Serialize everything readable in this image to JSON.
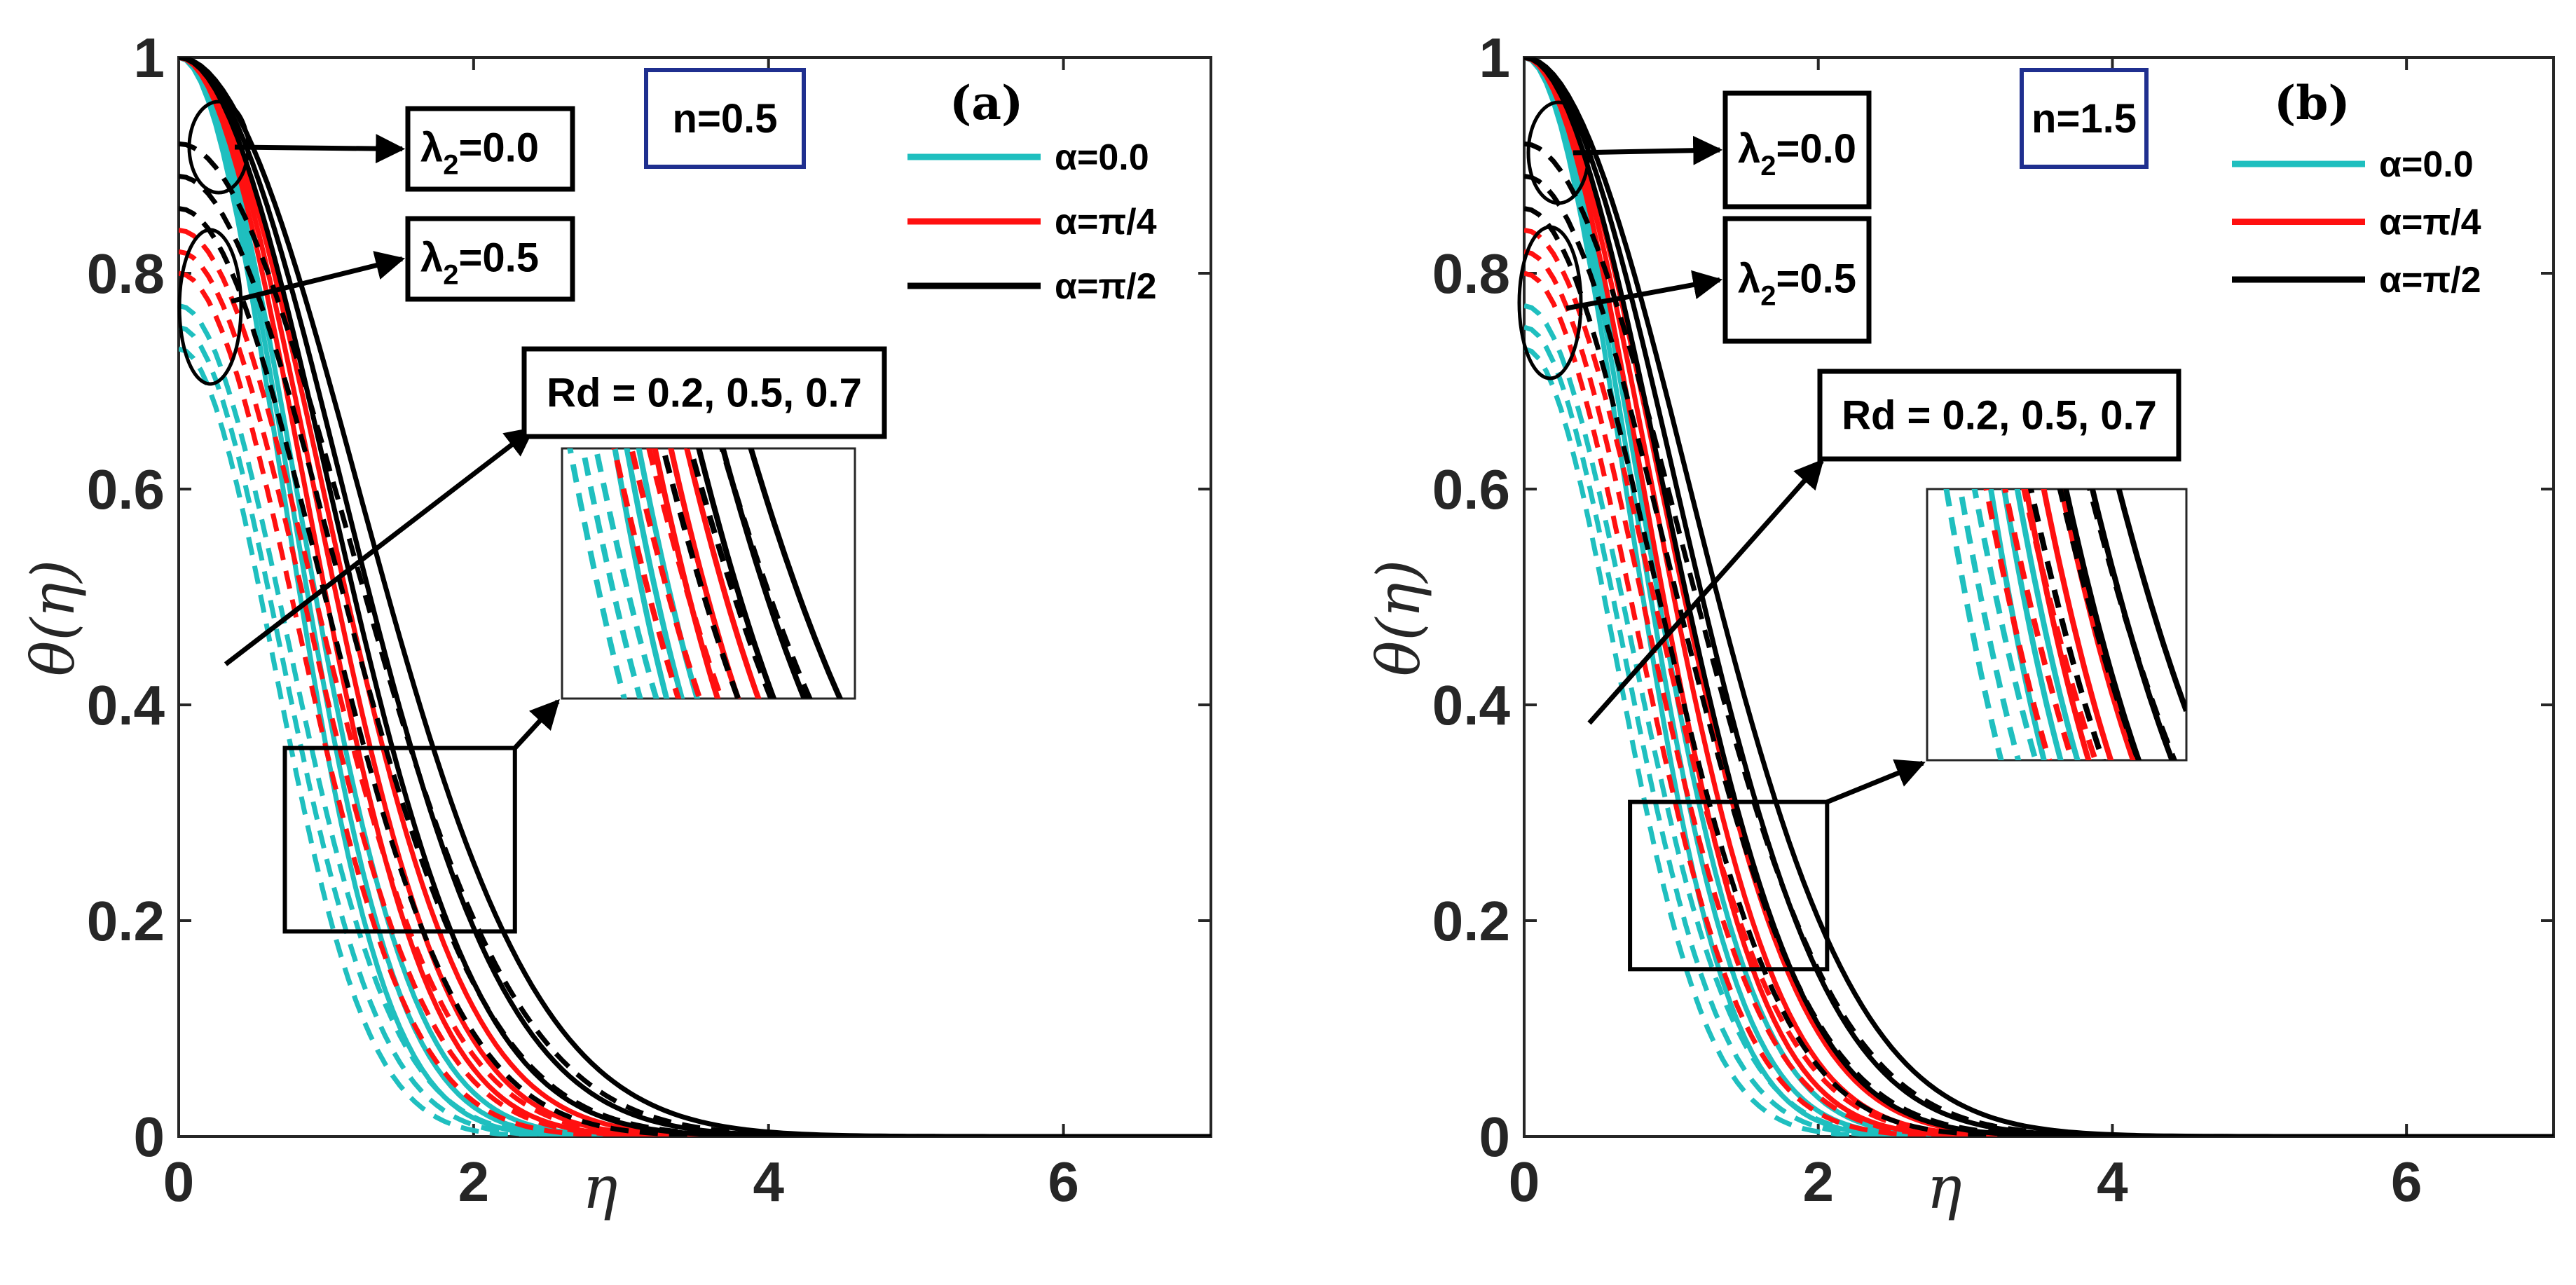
{
  "colors": {
    "alpha_0": "#1fbfbf",
    "alpha_pi4": "#ff1010",
    "alpha_pi2": "#000000",
    "nbox": "#1f2f8f"
  },
  "chart_data": [
    {
      "type": "line",
      "panel_label": "(a)",
      "n_label": "n=0.5",
      "xlabel": "η",
      "ylabel": "θ(η)",
      "xlim": [
        0,
        7
      ],
      "ylim": [
        0,
        1
      ],
      "xticks": [
        "0",
        "2",
        "4",
        "6"
      ],
      "yticks": [
        "0",
        "0.2",
        "0.4",
        "0.6",
        "0.8",
        "1"
      ],
      "legend": {
        "position": "top-right",
        "entries": [
          {
            "label": "α=0.0",
            "color": "#1fbfbf"
          },
          {
            "label": "α=π/4",
            "color": "#ff1010"
          },
          {
            "label": "α=π/2",
            "color": "#000000"
          }
        ]
      },
      "annotations": {
        "lambda_a": "λ",
        "lambda_a_sub": "2",
        "lambda_a_val": "=0.0",
        "lambda_b": "λ",
        "lambda_b_sub": "2",
        "lambda_b_val": "=0.5",
        "rd": "Rd = 0.2, 0.5, 0.7"
      },
      "inset_xrange": [
        0.72,
        2.28
      ],
      "inset_yrange": [
        0.19,
        0.36
      ],
      "inset_label": "zoom",
      "series": [
        {
          "alpha": "0.0",
          "lambda2": "0.0",
          "color": "#1fbfbf",
          "dash": false,
          "decay": [
            0.94,
            1.0,
            1.06
          ]
        },
        {
          "alpha": "0.0",
          "lambda2": "0.5",
          "color": "#1fbfbf",
          "dash": true,
          "decay": [
            0.86,
            0.92,
            0.98
          ],
          "ystart": [
            0.73,
            0.75,
            0.77
          ]
        },
        {
          "alpha": "π/4",
          "lambda2": "0.0",
          "color": "#ff1010",
          "dash": false,
          "decay": [
            1.14,
            1.22,
            1.3
          ]
        },
        {
          "alpha": "π/4",
          "lambda2": "0.5",
          "color": "#ff1010",
          "dash": true,
          "decay": [
            1.06,
            1.14,
            1.22
          ],
          "ystart": [
            0.8,
            0.82,
            0.84
          ]
        },
        {
          "alpha": "π/2",
          "lambda2": "0.0",
          "color": "#000000",
          "dash": false,
          "decay": [
            1.36,
            1.48,
            1.62
          ]
        },
        {
          "alpha": "π/2",
          "lambda2": "0.5",
          "color": "#000000",
          "dash": true,
          "decay": [
            1.28,
            1.4,
            1.54
          ],
          "ystart": [
            0.86,
            0.89,
            0.92
          ]
        }
      ]
    },
    {
      "type": "line",
      "panel_label": "(b)",
      "n_label": "n=1.5",
      "xlabel": "η",
      "ylabel": "θ(η)",
      "xlim": [
        0,
        7
      ],
      "ylim": [
        0,
        1
      ],
      "xticks": [
        "0",
        "2",
        "4",
        "6"
      ],
      "yticks": [
        "0",
        "0.2",
        "0.4",
        "0.6",
        "0.8",
        "1"
      ],
      "legend": {
        "position": "top-right",
        "entries": [
          {
            "label": "α=0.0",
            "color": "#1fbfbf"
          },
          {
            "label": "α=π/4",
            "color": "#ff1010"
          },
          {
            "label": "α=π/2",
            "color": "#000000"
          }
        ]
      },
      "annotations": {
        "lambda_a": "λ",
        "lambda_a_sub": "2",
        "lambda_a_val": "=0.0",
        "lambda_b": "λ",
        "lambda_b_sub": "2",
        "lambda_b_val": "=0.5",
        "rd": "Rd = 0.2, 0.5, 0.7"
      },
      "inset_xrange": [
        0.72,
        2.06
      ],
      "inset_yrange": [
        0.155,
        0.31
      ],
      "inset_label": "zoom",
      "series": [
        {
          "alpha": "0.0",
          "lambda2": "0.0",
          "color": "#1fbfbf",
          "dash": false,
          "decay": [
            0.92,
            0.98,
            1.04
          ]
        },
        {
          "alpha": "0.0",
          "lambda2": "0.5",
          "color": "#1fbfbf",
          "dash": true,
          "decay": [
            0.84,
            0.9,
            0.96
          ],
          "ystart": [
            0.73,
            0.75,
            0.77
          ]
        },
        {
          "alpha": "π/4",
          "lambda2": "0.0",
          "color": "#ff1010",
          "dash": false,
          "decay": [
            1.08,
            1.16,
            1.24
          ]
        },
        {
          "alpha": "π/4",
          "lambda2": "0.5",
          "color": "#ff1010",
          "dash": true,
          "decay": [
            1.0,
            1.08,
            1.16
          ],
          "ystart": [
            0.8,
            0.82,
            0.84
          ]
        },
        {
          "alpha": "π/2",
          "lambda2": "0.0",
          "color": "#000000",
          "dash": false,
          "decay": [
            1.26,
            1.38,
            1.5
          ]
        },
        {
          "alpha": "π/2",
          "lambda2": "0.5",
          "color": "#000000",
          "dash": true,
          "decay": [
            1.18,
            1.3,
            1.42
          ],
          "ystart": [
            0.86,
            0.89,
            0.92
          ]
        }
      ]
    }
  ]
}
